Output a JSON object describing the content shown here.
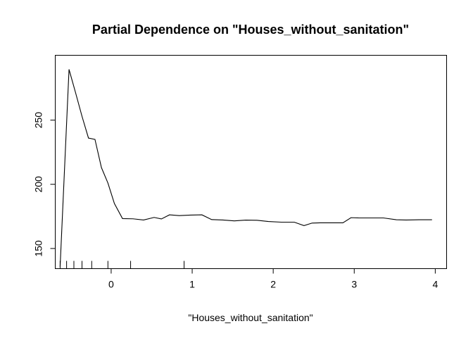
{
  "chart_data": {
    "type": "line",
    "title": "Partial Dependence on \"Houses_without_sanitation\"",
    "xlabel": "\"Houses_without_sanitation\"",
    "ylabel": "",
    "xlim": [
      -0.69,
      4.14
    ],
    "ylim": [
      134.3,
      300.5
    ],
    "x_ticks": [
      0,
      1,
      2,
      3,
      4
    ],
    "y_ticks": [
      150,
      200,
      250
    ],
    "grid": false,
    "series": [
      {
        "x": [
          -0.63,
          -0.52,
          -0.44,
          -0.36,
          -0.28,
          -0.2,
          -0.12,
          -0.04,
          0.04,
          0.14,
          0.27,
          0.4,
          0.53,
          0.62,
          0.72,
          0.84,
          0.98,
          1.12,
          1.24,
          1.38,
          1.52,
          1.66,
          1.8,
          1.94,
          2.1,
          2.26,
          2.38,
          2.48,
          2.58,
          2.72,
          2.86,
          2.96,
          3.06,
          3.2,
          3.36,
          3.52,
          3.64,
          3.8,
          3.96
        ],
        "y": [
          135.8,
          289.5,
          271.5,
          253,
          236,
          235,
          213,
          201,
          185,
          173.3,
          173.1,
          172.2,
          174.2,
          173,
          176.2,
          175.6,
          176,
          176.2,
          172.5,
          172.2,
          171.5,
          172.1,
          172,
          171,
          170.5,
          170.5,
          167.8,
          169.8,
          170,
          170,
          170,
          174,
          173.8,
          173.8,
          173.8,
          172.4,
          172.2,
          172.4,
          172.4
        ]
      }
    ],
    "rug_x": [
      -0.63,
      -0.55,
      -0.46,
      -0.36,
      -0.24,
      -0.04,
      0.24,
      0.9
    ]
  }
}
